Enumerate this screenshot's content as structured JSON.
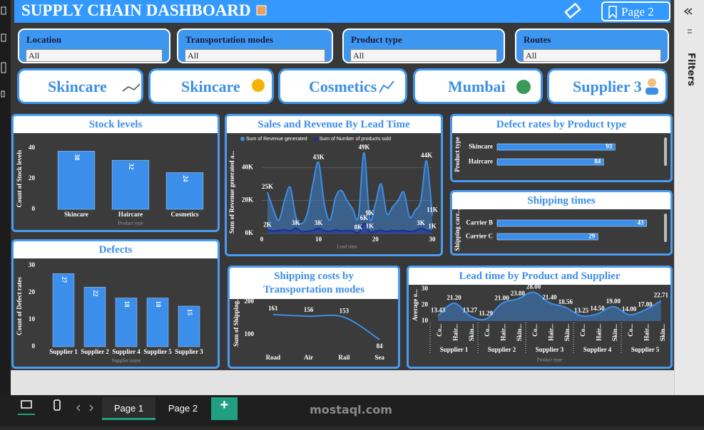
{
  "header": {
    "title": "SUPPLY CHAIN DASHBOARD",
    "page_button": "Page 2"
  },
  "filters": [
    {
      "label": "Location",
      "value": "All"
    },
    {
      "label": "Transportation modes",
      "value": "All"
    },
    {
      "label": "Product type",
      "value": "All"
    },
    {
      "label": "Routes",
      "value": "All"
    }
  ],
  "cards": [
    "Skincare",
    "Skincare",
    "Cosmetics",
    "Mumbai",
    "Supplier 3"
  ],
  "filters_pane": "Filters",
  "tabs": [
    "Page 1",
    "Page 2"
  ],
  "tab_add": "+",
  "watermark": "mostaql.com",
  "chart_data": [
    {
      "type": "bar",
      "title": "Stock levels",
      "xlabel": "Product type",
      "ylabel": "Count of Stock levels",
      "categories": [
        "Skincare",
        "Haircare",
        "Cosmetics"
      ],
      "values": [
        38,
        32,
        24
      ],
      "color": "#3b8eea",
      "ylim": [
        0,
        40
      ],
      "yticks": [
        0,
        20,
        40
      ],
      "data_labels": true
    },
    {
      "type": "area",
      "title": "Sales and Revenue By Lead Time",
      "xlabel": "Lead time",
      "ylabel": "Sum of Revenue generated a...",
      "x": [
        1,
        2,
        3,
        4,
        5,
        6,
        7,
        8,
        9,
        10,
        11,
        12,
        13,
        14,
        15,
        16,
        17,
        18,
        19,
        20,
        21,
        22,
        23,
        24,
        25,
        26,
        27,
        28,
        29,
        30
      ],
      "series": [
        {
          "name": "Sum of Revenue generated",
          "color": "#3b8eea",
          "values": [
            25000,
            15000,
            8000,
            20000,
            28000,
            10000,
            6000,
            12000,
            30000,
            43000,
            18000,
            8000,
            22000,
            26000,
            20000,
            15000,
            10000,
            49000,
            9000,
            18000,
            30000,
            12000,
            16000,
            20000,
            25000,
            10000,
            14000,
            20000,
            44000,
            11000
          ],
          "value_labels": [
            "25K",
            null,
            null,
            null,
            null,
            null,
            null,
            null,
            null,
            "43K",
            null,
            null,
            null,
            null,
            null,
            null,
            null,
            "49K",
            "9K",
            null,
            null,
            null,
            null,
            null,
            null,
            null,
            null,
            null,
            "44K",
            "11K"
          ]
        },
        {
          "name": "Sum of Number of products sold",
          "color": "#1f2a9c",
          "values": [
            2000,
            1500,
            1800,
            2200,
            1600,
            3000,
            1200,
            1400,
            1900,
            3000,
            1700,
            1300,
            2100,
            1500,
            1800,
            1600,
            400,
            6000,
            1000,
            1400,
            1900,
            1300,
            1700,
            1500,
            1800,
            1200,
            1600,
            3000,
            2000,
            1000
          ],
          "value_labels": [
            "2K",
            null,
            null,
            null,
            null,
            "3K",
            null,
            null,
            null,
            "3K",
            null,
            null,
            null,
            null,
            null,
            null,
            "0K",
            "6K",
            "1K",
            null,
            null,
            null,
            null,
            null,
            null,
            null,
            null,
            "3K",
            null,
            "1K"
          ]
        }
      ],
      "xlim": [
        0,
        30
      ],
      "xticks": [
        0,
        10,
        20,
        30
      ],
      "ylim": [
        0,
        50000
      ],
      "yticks": [
        {
          "value": 0,
          "label": "0K"
        },
        {
          "value": 20000,
          "label": "20K"
        },
        {
          "value": 40000,
          "label": "40K"
        }
      ],
      "grid": true,
      "legend": "top"
    },
    {
      "type": "bar",
      "orientation": "horizontal",
      "title": "Defect rates by Product type",
      "ylabel": "Product type",
      "categories": [
        "Skincare",
        "Haircare"
      ],
      "values": [
        93,
        84
      ],
      "color": "#3b8eea",
      "xlim": [
        0,
        130
      ],
      "data_labels": true
    },
    {
      "type": "bar",
      "orientation": "horizontal",
      "title": "Shipping times",
      "ylabel": "Shipping carr...",
      "categories": [
        "Carrier B",
        "Carrier C"
      ],
      "values": [
        43,
        29
      ],
      "color": "#3b8eea",
      "xlim": [
        0,
        47
      ],
      "data_labels": true
    },
    {
      "type": "bar",
      "title": "Defects",
      "xlabel": "Supplier name",
      "ylabel": "Count of Defect rates",
      "categories": [
        "Supplier 1",
        "Supplier 2",
        "Supplier 4",
        "Supplier 5",
        "Supplier 3"
      ],
      "values": [
        27,
        22,
        18,
        18,
        15
      ],
      "color": "#3b8eea",
      "ylim": [
        0,
        30
      ],
      "yticks": [
        0,
        10,
        20,
        30
      ],
      "data_labels": true
    },
    {
      "type": "line",
      "title": "Shipping costs by Transportation modes",
      "ylabel": "Sum of Shipping...",
      "categories": [
        "Road",
        "Air",
        "Rail",
        "Sea"
      ],
      "values": [
        161,
        156,
        153,
        84
      ],
      "color": "#3b8eea",
      "ylim": [
        80,
        200
      ],
      "yticks": [
        100,
        200
      ],
      "data_labels": true
    },
    {
      "type": "area",
      "title": "Lead time by Product and Supplier",
      "xlabel": "Product type",
      "ylabel": "Average o...",
      "categories": [
        "Co...",
        "Hair...",
        "Skin...",
        "Co...",
        "Hair...",
        "Skin...",
        "Co...",
        "Hair...",
        "Skin...",
        "Co...",
        "Hair...",
        "Skin...",
        "Co...",
        "Hair...",
        "Skin..."
      ],
      "groups": [
        "Supplier 1",
        "Supplier 2",
        "Supplier 3",
        "Supplier 4",
        "Supplier 5"
      ],
      "values": [
        13.43,
        21.2,
        13.27,
        11.29,
        21,
        23.8,
        28,
        21.4,
        18.56,
        13.25,
        14.5,
        19,
        14,
        17,
        22.71
      ],
      "value_labels": [
        "13.43",
        "21.20",
        "13.27",
        "11.29",
        "21.00",
        "23.80",
        "28.00",
        "21.40",
        "18.56",
        "13.25",
        "14.50",
        "19.00",
        "14.00",
        "17.00",
        "22.71"
      ],
      "color": "#3b8eea",
      "ylim": [
        10,
        30
      ],
      "yticks": [
        10,
        20,
        30
      ]
    }
  ]
}
